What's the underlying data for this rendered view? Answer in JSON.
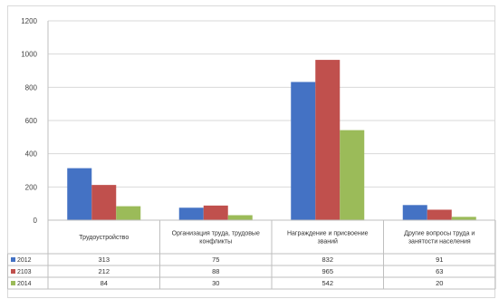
{
  "chart_data": {
    "type": "bar",
    "categories": [
      "Трудоустройство",
      "Организация труда, трудовые конфликты",
      "Награждение и присвоение званий",
      "Другие вопросы труда и занятости населения"
    ],
    "series": [
      {
        "name": "2012",
        "values": [
          313,
          75,
          832,
          91
        ],
        "color": "#4472C4"
      },
      {
        "name": "2103",
        "values": [
          212,
          88,
          965,
          63
        ],
        "color": "#C0504D"
      },
      {
        "name": "2014",
        "values": [
          84,
          30,
          542,
          20
        ],
        "color": "#9BBB59"
      }
    ],
    "y_ticks": [
      "0",
      "200",
      "400",
      "600",
      "800",
      "1000",
      "1200"
    ],
    "ylim": [
      0,
      1200
    ],
    "grid": true,
    "legend": "data-table-left",
    "title": "",
    "xlabel": "",
    "ylabel": ""
  }
}
